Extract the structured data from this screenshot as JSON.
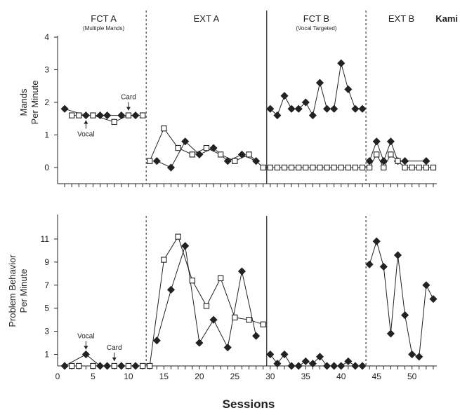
{
  "participant": "Kami",
  "x_axis_label": "Sessions",
  "phases": [
    {
      "label": "FCT A",
      "sub": "(Multiple Mands)",
      "start": 0.5,
      "end": 12.5,
      "divider": "dashed"
    },
    {
      "label": "EXT A",
      "sub": "",
      "start": 12.5,
      "end": 29.5,
      "divider": "solid"
    },
    {
      "label": "FCT B",
      "sub": "(Vocal Targeted)",
      "start": 29.5,
      "end": 43.5,
      "divider": "dashed"
    },
    {
      "label": "EXT B",
      "sub": "",
      "start": 43.5,
      "end": 53.5,
      "divider": null
    }
  ],
  "chart_data": [
    {
      "type": "line",
      "ylabel_lines": [
        "Mands",
        "Per Minute"
      ],
      "xlim": [
        0,
        53.5
      ],
      "ylim": [
        0,
        4
      ],
      "yticks": [
        0,
        1,
        2,
        3,
        4
      ],
      "xticks": [],
      "annotations": [
        {
          "text": "Vocal",
          "x": 4,
          "y": 1.6,
          "arrow": "up"
        },
        {
          "text": "Card",
          "x": 10,
          "y": 1.6,
          "arrow": "down"
        }
      ],
      "series": [
        {
          "marker": "filled-diamond",
          "points": [
            [
              1,
              1.8
            ],
            [
              4,
              1.6
            ],
            [
              6,
              1.6
            ],
            [
              7,
              1.6
            ],
            [
              9,
              1.6
            ],
            [
              11,
              1.6
            ],
            [
              14,
              0.2
            ],
            [
              16,
              0
            ],
            [
              18,
              0.8
            ],
            [
              20,
              0.4
            ],
            [
              22,
              0.6
            ],
            [
              24,
              0.2
            ],
            [
              26,
              0.4
            ],
            [
              28,
              0.2
            ],
            [
              30,
              1.8
            ],
            [
              31,
              1.6
            ],
            [
              32,
              2.2
            ],
            [
              33,
              1.8
            ],
            [
              34,
              1.8
            ],
            [
              35,
              2.0
            ],
            [
              36,
              1.6
            ],
            [
              37,
              2.6
            ],
            [
              38,
              1.8
            ],
            [
              39,
              1.8
            ],
            [
              40,
              3.2
            ],
            [
              41,
              2.4
            ],
            [
              42,
              1.8
            ],
            [
              43,
              1.8
            ],
            [
              44,
              0.2
            ],
            [
              45,
              0.8
            ],
            [
              46,
              0.2
            ],
            [
              47,
              0.8
            ],
            [
              48,
              0.2
            ],
            [
              49,
              0.2
            ],
            [
              52,
              0.2
            ]
          ],
          "breaks_after_x": [
            12.5,
            29.5,
            43.5
          ]
        },
        {
          "marker": "open-square",
          "points": [
            [
              2,
              1.6
            ],
            [
              3,
              1.6
            ],
            [
              5,
              1.6
            ],
            [
              8,
              1.4
            ],
            [
              10,
              1.6
            ],
            [
              12,
              1.6
            ],
            [
              13,
              0.2
            ],
            [
              15,
              1.2
            ],
            [
              17,
              0.6
            ],
            [
              19,
              0.4
            ],
            [
              21,
              0.6
            ],
            [
              23,
              0.4
            ],
            [
              25,
              0.2
            ],
            [
              27,
              0.4
            ],
            [
              29,
              0
            ],
            [
              30,
              0
            ],
            [
              31,
              0
            ],
            [
              32,
              0
            ],
            [
              33,
              0
            ],
            [
              34,
              0
            ],
            [
              35,
              0
            ],
            [
              36,
              0
            ],
            [
              37,
              0
            ],
            [
              38,
              0
            ],
            [
              39,
              0
            ],
            [
              40,
              0
            ],
            [
              41,
              0
            ],
            [
              42,
              0
            ],
            [
              43,
              0
            ],
            [
              44,
              0
            ],
            [
              45,
              0.4
            ],
            [
              46,
              0
            ],
            [
              47,
              0.4
            ],
            [
              48,
              0.2
            ],
            [
              49,
              0
            ],
            [
              50,
              0
            ],
            [
              51,
              0
            ],
            [
              52,
              0
            ],
            [
              53,
              0
            ]
          ],
          "breaks_after_x": [
            12.5,
            43.5
          ]
        }
      ]
    },
    {
      "type": "line",
      "ylabel_lines": [
        "Problem Behavior",
        "Per Minute"
      ],
      "xlim": [
        0,
        53.5
      ],
      "ylim": [
        0,
        13
      ],
      "yticks": [
        1,
        3,
        5,
        7,
        9,
        11
      ],
      "xticks": [
        0,
        5,
        10,
        15,
        20,
        25,
        30,
        35,
        40,
        45,
        50
      ],
      "annotations": [
        {
          "text": "Vocal",
          "x": 4,
          "y": 1.0,
          "arrow": "down"
        },
        {
          "text": "Card",
          "x": 8,
          "y": 0,
          "arrow": "down"
        }
      ],
      "series": [
        {
          "marker": "filled-diamond",
          "points": [
            [
              1,
              0
            ],
            [
              4,
              1.0
            ],
            [
              6,
              0
            ],
            [
              7,
              0
            ],
            [
              9,
              0
            ],
            [
              11,
              0
            ],
            [
              14,
              2.2
            ],
            [
              16,
              6.6
            ],
            [
              18,
              10.4
            ],
            [
              20,
              2.0
            ],
            [
              22,
              4.0
            ],
            [
              24,
              1.6
            ],
            [
              26,
              8.2
            ],
            [
              28,
              2.6
            ],
            [
              30,
              1.0
            ],
            [
              31,
              0.2
            ],
            [
              32,
              1.0
            ],
            [
              33,
              0
            ],
            [
              34,
              0
            ],
            [
              35,
              0.4
            ],
            [
              36,
              0.2
            ],
            [
              37,
              0.8
            ],
            [
              38,
              0
            ],
            [
              39,
              0
            ],
            [
              40,
              0
            ],
            [
              41,
              0.4
            ],
            [
              42,
              0
            ],
            [
              43,
              0
            ],
            [
              44,
              8.8
            ],
            [
              45,
              10.8
            ],
            [
              46,
              8.6
            ],
            [
              47,
              2.8
            ],
            [
              48,
              9.6
            ],
            [
              49,
              4.4
            ],
            [
              50,
              1.0
            ],
            [
              51,
              0.8
            ],
            [
              52,
              7.0
            ],
            [
              53,
              5.8
            ]
          ],
          "breaks_after_x": [
            12.5,
            29.5,
            43.5
          ]
        },
        {
          "marker": "open-square",
          "points": [
            [
              2,
              0
            ],
            [
              3,
              0
            ],
            [
              5,
              0
            ],
            [
              8,
              0
            ],
            [
              10,
              0
            ],
            [
              12,
              0
            ],
            [
              13,
              0
            ],
            [
              15,
              9.2
            ],
            [
              17,
              11.2
            ],
            [
              19,
              7.4
            ],
            [
              21,
              5.2
            ],
            [
              23,
              7.6
            ],
            [
              25,
              4.2
            ],
            [
              27,
              4.0
            ],
            [
              29,
              3.6
            ]
          ],
          "breaks_after_x": [
            12.5
          ]
        }
      ]
    }
  ]
}
